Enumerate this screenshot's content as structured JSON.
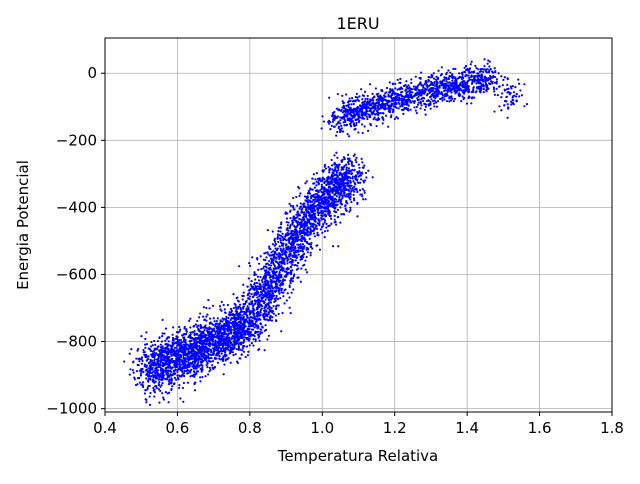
{
  "chart_data": {
    "type": "scatter",
    "title": "1ERU",
    "xlabel": "Temperatura Relativa",
    "ylabel": "Energia Potencial",
    "xlim": [
      0.4,
      1.8
    ],
    "ylim": [
      -1010,
      105
    ],
    "x_ticks": [
      0.4,
      0.6,
      0.8,
      1.0,
      1.2,
      1.4,
      1.6,
      1.8
    ],
    "x_tick_labels": [
      "0.4",
      "0.6",
      "0.8",
      "1.0",
      "1.2",
      "1.4",
      "1.6",
      "1.8"
    ],
    "y_ticks": [
      -1000,
      -800,
      -600,
      -400,
      -200,
      0
    ],
    "y_tick_labels": [
      "−1000",
      "−800",
      "−600",
      "−400",
      "−200",
      "0"
    ],
    "grid": true,
    "marker_color": "#0000ff",
    "series": [
      {
        "values_description_note": "",
        "points": [
          [
            0.52,
            -880
          ],
          [
            0.53,
            -860
          ],
          [
            0.54,
            -900
          ],
          [
            0.55,
            -870
          ],
          [
            0.56,
            -890
          ],
          [
            0.57,
            -850
          ],
          [
            0.58,
            -875
          ],
          [
            0.59,
            -840
          ],
          [
            0.6,
            -860
          ],
          [
            0.61,
            -830
          ],
          [
            0.62,
            -855
          ],
          [
            0.63,
            -825
          ],
          [
            0.64,
            -845
          ],
          [
            0.65,
            -815
          ],
          [
            0.66,
            -835
          ],
          [
            0.67,
            -805
          ],
          [
            0.68,
            -820
          ],
          [
            0.69,
            -795
          ],
          [
            0.7,
            -810
          ],
          [
            0.71,
            -785
          ],
          [
            0.72,
            -800
          ],
          [
            0.73,
            -775
          ],
          [
            0.74,
            -790
          ],
          [
            0.75,
            -765
          ],
          [
            0.76,
            -780
          ],
          [
            0.77,
            -750
          ],
          [
            0.78,
            -765
          ],
          [
            0.79,
            -735
          ],
          [
            0.8,
            -745
          ],
          [
            0.81,
            -715
          ],
          [
            0.82,
            -700
          ],
          [
            0.83,
            -680
          ],
          [
            0.84,
            -660
          ],
          [
            0.85,
            -640
          ],
          [
            0.86,
            -620
          ],
          [
            0.87,
            -600
          ],
          [
            0.88,
            -580
          ],
          [
            0.89,
            -565
          ],
          [
            0.9,
            -545
          ],
          [
            0.91,
            -525
          ],
          [
            0.92,
            -505
          ],
          [
            0.93,
            -490
          ],
          [
            0.94,
            -470
          ],
          [
            0.95,
            -455
          ],
          [
            0.96,
            -440
          ],
          [
            0.97,
            -425
          ],
          [
            0.98,
            -410
          ],
          [
            0.99,
            -395
          ],
          [
            1.0,
            -385
          ],
          [
            1.01,
            -370
          ],
          [
            1.02,
            -360
          ],
          [
            1.03,
            -350
          ],
          [
            1.04,
            -340
          ],
          [
            1.05,
            -330
          ],
          [
            1.06,
            -320
          ],
          [
            1.07,
            -310
          ],
          [
            1.08,
            -300
          ],
          [
            1.05,
            -140
          ],
          [
            1.06,
            -130
          ],
          [
            1.08,
            -125
          ],
          [
            1.1,
            -115
          ],
          [
            1.12,
            -105
          ],
          [
            1.14,
            -100
          ],
          [
            1.16,
            -95
          ],
          [
            1.18,
            -85
          ],
          [
            1.2,
            -80
          ],
          [
            1.22,
            -75
          ],
          [
            1.24,
            -70
          ],
          [
            1.26,
            -65
          ],
          [
            1.28,
            -60
          ],
          [
            1.3,
            -55
          ],
          [
            1.32,
            -50
          ],
          [
            1.34,
            -45
          ],
          [
            1.36,
            -40
          ],
          [
            1.38,
            -35
          ],
          [
            1.4,
            -30
          ],
          [
            1.42,
            -25
          ],
          [
            1.44,
            -20
          ],
          [
            1.46,
            -15
          ],
          [
            1.51,
            -70
          ]
        ]
      }
    ]
  }
}
